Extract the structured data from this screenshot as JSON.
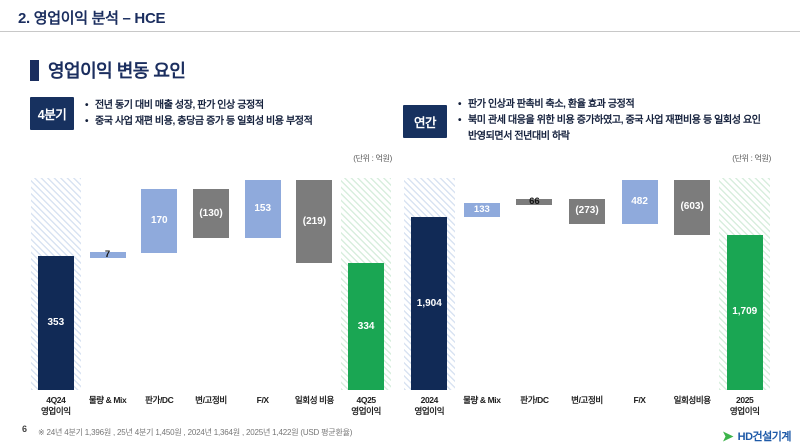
{
  "page": {
    "title": "2. 영업이익 분석 – HCE",
    "section_title": "영업이익 변동 요인",
    "page_number": "6",
    "footnote": "※ 24년 4분기 1,396원 , 25년 4분기 1,450원 , 2024년 1,364원 , 2025년 1,422원 (USD 평균환율)",
    "logo_text": "HD건설기계"
  },
  "colors": {
    "navy": "#112a56",
    "lightblue": "#8faadc",
    "gray": "#7c7c7c",
    "green": "#1aa653",
    "accent_navy": "#1b2e5f",
    "logo_green": "#3cb44a",
    "logo_blue": "#1e5aa8"
  },
  "panels": [
    {
      "badge": "4분기",
      "bullets": [
        "전년 동기 대비 매출 성장, 판가 인상 긍정적",
        "중국 사업 재편 비용, 충당금 증가 등 일회성 비용 부정적"
      ]
    },
    {
      "badge": "연간",
      "bullets": [
        "판가 인상과 판촉비 축소, 환율 효과 긍정적",
        "북미 관세 대응을 위한 비용 증가하였고, 중국 사업 재편비용 등 일회성 요인 반영되면서 전년대비 하락"
      ]
    }
  ],
  "chart_data": [
    {
      "type": "bar",
      "subtype": "waterfall",
      "unit_label": "(단위 : 억원)",
      "categories": [
        "4Q24\n영업이익",
        "물량 & Mix",
        "판가/DC",
        "변/고정비",
        "F/X",
        "일회성 비용",
        "4Q25\n영업이익"
      ],
      "steps": [
        {
          "label": "353",
          "value": 353,
          "kind": "total",
          "color": "navy",
          "band": "blue"
        },
        {
          "label": "7",
          "value": 7,
          "kind": "delta",
          "color": "lightblue"
        },
        {
          "label": "170",
          "value": 170,
          "kind": "delta",
          "color": "lightblue"
        },
        {
          "label": "(130)",
          "value": -130,
          "kind": "delta",
          "color": "gray"
        },
        {
          "label": "153",
          "value": 153,
          "kind": "delta",
          "color": "lightblue"
        },
        {
          "label": "(219)",
          "value": -219,
          "kind": "delta",
          "color": "gray"
        },
        {
          "label": "334",
          "value": 334,
          "kind": "total",
          "color": "green",
          "band": "green"
        }
      ],
      "ylim": [
        0,
        560
      ],
      "grid": false,
      "legend": false
    },
    {
      "type": "bar",
      "subtype": "waterfall",
      "unit_label": "(단위 : 억원)",
      "categories": [
        "2024\n영업이익",
        "물량 & Mix",
        "판가/DC",
        "변/고정비",
        "F/X",
        "일회성비용",
        "2025\n영업이익"
      ],
      "steps": [
        {
          "label": "1,904",
          "value": 1904,
          "kind": "total",
          "color": "navy",
          "band": "blue"
        },
        {
          "label": "133",
          "value": 133,
          "kind": "delta",
          "color": "lightblue"
        },
        {
          "label": "66",
          "value": 66,
          "kind": "delta",
          "color": "gray"
        },
        {
          "label": "(273)",
          "value": -273,
          "kind": "delta",
          "color": "gray"
        },
        {
          "label": "482",
          "value": 482,
          "kind": "delta",
          "color": "lightblue"
        },
        {
          "label": "(603)",
          "value": -603,
          "kind": "delta",
          "color": "gray"
        },
        {
          "label": "1,709",
          "value": 1709,
          "kind": "total",
          "color": "green",
          "band": "green"
        }
      ],
      "ylim": [
        0,
        2340
      ],
      "grid": false,
      "legend": false
    }
  ]
}
